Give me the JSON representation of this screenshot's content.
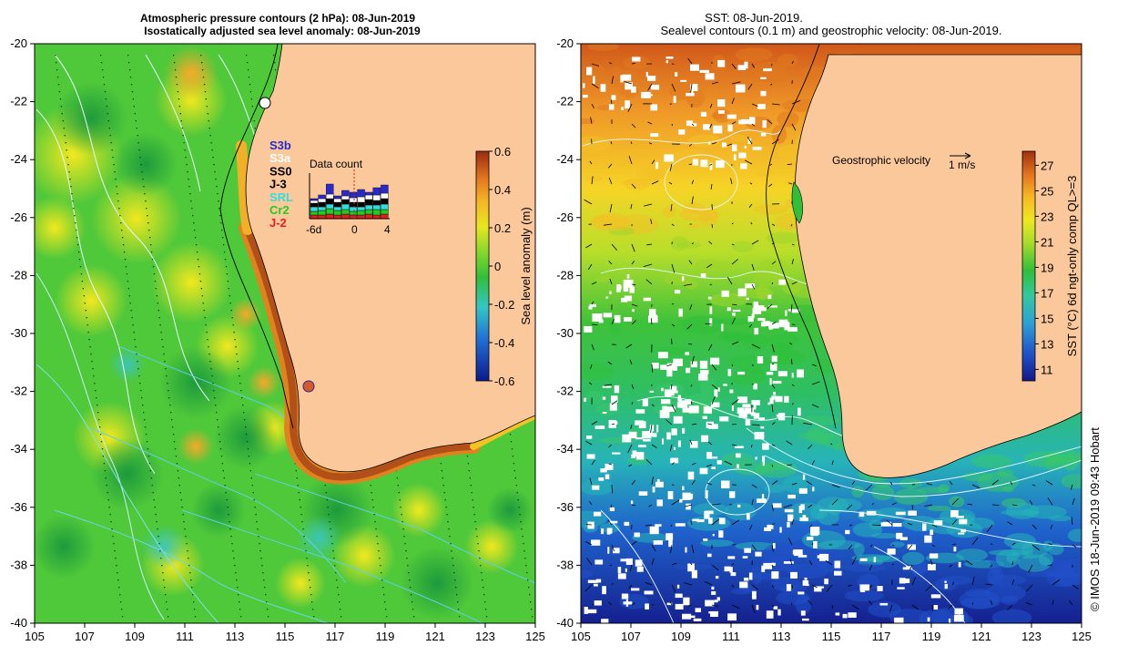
{
  "left_panel": {
    "title_line1": "Atmospheric pressure contours (2 hPa): 08-Jun-2019",
    "title_line2": "Isostatically adjusted sea level anomaly: 08-Jun-2019",
    "x_ticks": [
      "105",
      "107",
      "109",
      "111",
      "113",
      "115",
      "117",
      "119",
      "121",
      "123",
      "125"
    ],
    "y_ticks": [
      "-20",
      "-22",
      "-24",
      "-26",
      "-28",
      "-30",
      "-32",
      "-34",
      "-36",
      "-38",
      "-40"
    ],
    "colorbar": {
      "label": "Sea level anomaly (m)",
      "ticks": [
        "0.6",
        "0.4",
        "0.2",
        "0",
        "-0.2",
        "-0.4",
        "-0.6"
      ],
      "range": [
        -0.6,
        0.6
      ]
    },
    "satellite_legend": [
      {
        "name": "S3b",
        "color": "#2a2acc"
      },
      {
        "name": "S3a",
        "color": "#ffffff"
      },
      {
        "name": "SS0",
        "color": "#000000"
      },
      {
        "name": "J-3",
        "color": "#000000"
      },
      {
        "name": "SRL",
        "color": "#33dddd"
      },
      {
        "name": "Cr2",
        "color": "#22cc22"
      },
      {
        "name": "J-2",
        "color": "#dd2222"
      }
    ],
    "data_count": {
      "title": "Data count",
      "x_ticks": [
        "-6d",
        "0",
        "4"
      ]
    }
  },
  "right_panel": {
    "title_line1": "SST: 08-Jun-2019.",
    "title_line2": "Sealevel contours (0.1 m) and geostrophic velocity: 08-Jun-2019.",
    "x_ticks": [
      "105",
      "107",
      "109",
      "111",
      "113",
      "115",
      "117",
      "119",
      "121",
      "123",
      "125"
    ],
    "y_ticks": [
      "-20",
      "-22",
      "-24",
      "-26",
      "-28",
      "-30",
      "-32",
      "-34",
      "-36",
      "-38",
      "-40"
    ],
    "velocity_label": "Geostrophic velocity",
    "velocity_scale": "1 m/s",
    "colorbar": {
      "label": "SST (°C) 6d ngt-only comp QL>=3",
      "ticks": [
        "27",
        "25",
        "23",
        "21",
        "19",
        "17",
        "15",
        "13",
        "11"
      ],
      "range": [
        11,
        28
      ]
    }
  },
  "credit": "© IMOS 18-Jun-2019 09:43 Hobart",
  "colors": {
    "land": "#fbc89b",
    "coast": "#000000",
    "sla_background": "#4fc83a"
  }
}
